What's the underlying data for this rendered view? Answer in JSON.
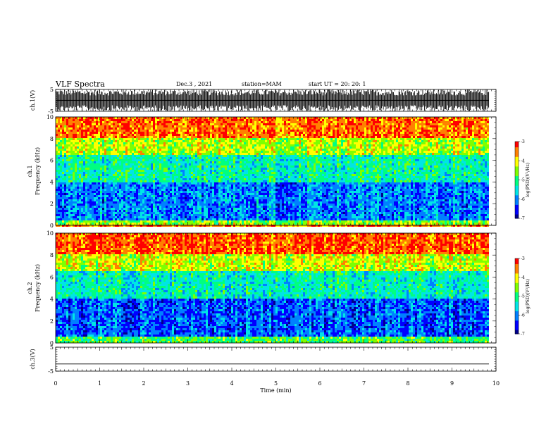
{
  "header": {
    "title": "VLF Spectra",
    "date": "Dec.3 , 2021",
    "station": "station=MAM",
    "start": "start UT = 20: 20: 1"
  },
  "colors": {
    "spectrum": [
      "#00008b",
      "#0000ff",
      "#0080ff",
      "#00e5e5",
      "#00ff80",
      "#7fff00",
      "#ffff00",
      "#ff8000",
      "#ff0000"
    ]
  },
  "chart_data": [
    {
      "type": "line",
      "name": "ch1-waveform",
      "ylabel": "ch.1(V)",
      "ylim": [
        -5,
        5
      ],
      "yticks": [
        "5",
        "-5"
      ],
      "xlim": [
        0,
        10
      ],
      "description_values": {
        "amplitude_V": 5
      }
    },
    {
      "type": "heatmap",
      "name": "ch1-spectrogram",
      "ylabel_line1": "ch.1",
      "ylabel_line2": "Frequency (kHz)",
      "ylim": [
        0,
        10
      ],
      "yticks": [
        "0",
        "2",
        "4",
        "6",
        "8",
        "10"
      ],
      "xlim": [
        0,
        10
      ],
      "colorbar": {
        "label": "log(PSD)(V²/Hz)",
        "range": [
          -7,
          -3
        ],
        "ticks": [
          "-3",
          "-4",
          "-5",
          "-6",
          "-7"
        ]
      },
      "bands": [
        {
          "freq_kHz": [
            0,
            0.5
          ],
          "log_psd": -4.5
        },
        {
          "freq_kHz": [
            0.5,
            4
          ],
          "log_psd": -6.0
        },
        {
          "freq_kHz": [
            4,
            6.5
          ],
          "log_psd": -5.2
        },
        {
          "freq_kHz": [
            6.5,
            8
          ],
          "log_psd": -4.3
        },
        {
          "freq_kHz": [
            8,
            10
          ],
          "log_psd": -3.4
        }
      ]
    },
    {
      "type": "heatmap",
      "name": "ch2-spectrogram",
      "ylabel_line1": "ch.2",
      "ylabel_line2": "Frequency (kHz)",
      "ylim": [
        0,
        10
      ],
      "yticks": [
        "0",
        "2",
        "4",
        "6",
        "8",
        "10"
      ],
      "xlim": [
        0,
        10
      ],
      "colorbar": {
        "label": "log(PSD)(V²/Hz)",
        "range": [
          -7,
          -3
        ],
        "ticks": [
          "-3",
          "-4",
          "-5",
          "-6",
          "-7"
        ]
      },
      "bands": [
        {
          "freq_kHz": [
            0,
            0.5
          ],
          "log_psd": -4.8
        },
        {
          "freq_kHz": [
            0.5,
            4
          ],
          "log_psd": -6.2
        },
        {
          "freq_kHz": [
            4,
            6.5
          ],
          "log_psd": -5.3
        },
        {
          "freq_kHz": [
            6.5,
            8
          ],
          "log_psd": -4.2
        },
        {
          "freq_kHz": [
            8,
            10
          ],
          "log_psd": -3.3
        }
      ]
    },
    {
      "type": "line",
      "name": "ch3-waveform",
      "ylabel": "ch.3(V)",
      "ylim": [
        -5,
        5
      ],
      "yticks": [
        "5",
        "-5"
      ],
      "xlim": [
        0,
        10
      ],
      "xlabel": "Time (min)",
      "xticks": [
        "0",
        "1",
        "2",
        "3",
        "4",
        "5",
        "6",
        "7",
        "8",
        "9",
        "10"
      ],
      "x": [
        0,
        9.84
      ],
      "y": [
        -2,
        -2
      ]
    }
  ]
}
